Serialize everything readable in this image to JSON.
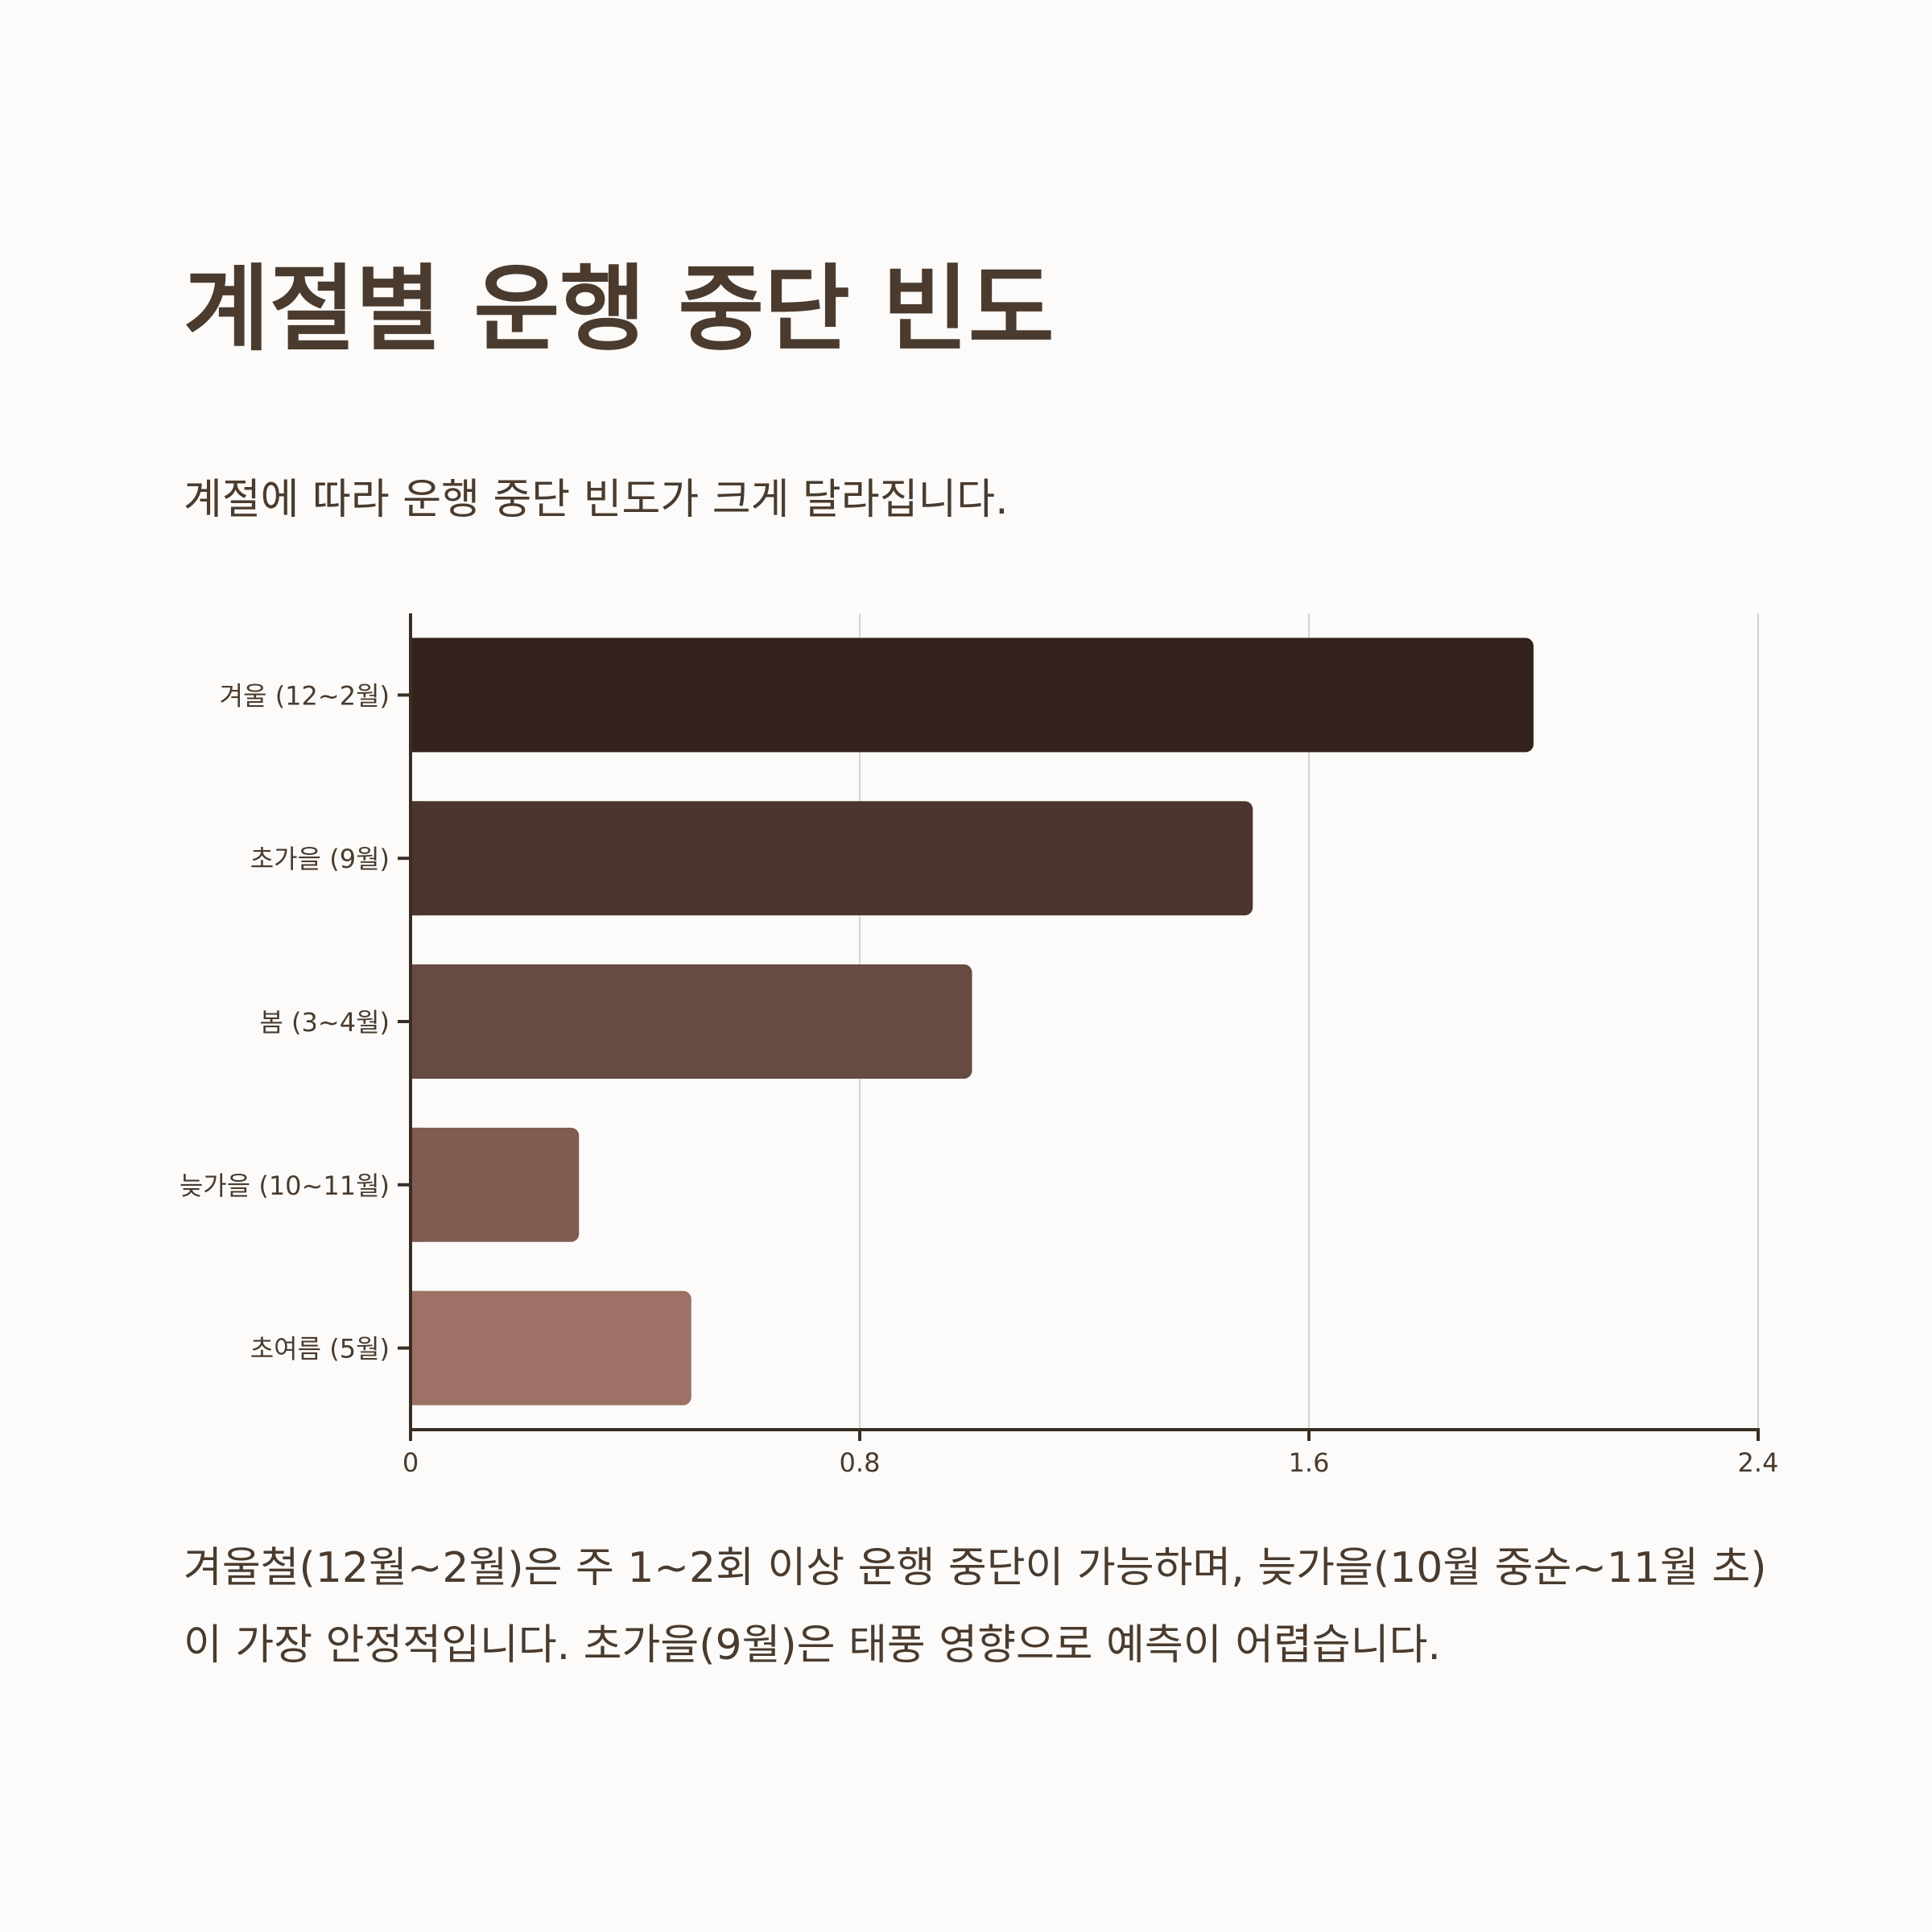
{
  "title": "계절별 운행 중단 빈도",
  "subtitle": "계절에 따라 운행 중단 빈도가 크게 달라집니다.",
  "footnote": "겨울철(12월~2월)은 주 1~2회 이상 운행 중단이 가능하며, 늦가을(10월 중순~11월 초)이 가장 안정적입니다. 초가을(9월)은 태풍 영향으로 예측이 어렵습니다.",
  "colors": {
    "text": "#4a3b2e",
    "axis": "#3a2e24",
    "grid": "#d6d3d0",
    "bars": [
      "#33221d",
      "#4b352e",
      "#674a41",
      "#805b52",
      "#9d7166"
    ]
  },
  "chart_data": {
    "type": "bar",
    "orientation": "horizontal",
    "categories": [
      "겨울 (12~2월)",
      "초가을 (9월)",
      "봄 (3~4월)",
      "늦가을 (10~11월)",
      "초여름 (5월)"
    ],
    "values": [
      2.0,
      1.5,
      1.0,
      0.3,
      0.5
    ],
    "xlim": [
      0,
      2.4
    ],
    "xticks": [
      "0",
      "0.8",
      "1.6",
      "2.4"
    ],
    "xtick_values": [
      0,
      0.8,
      1.6,
      2.4
    ],
    "grid": "vertical",
    "legend": "none"
  }
}
